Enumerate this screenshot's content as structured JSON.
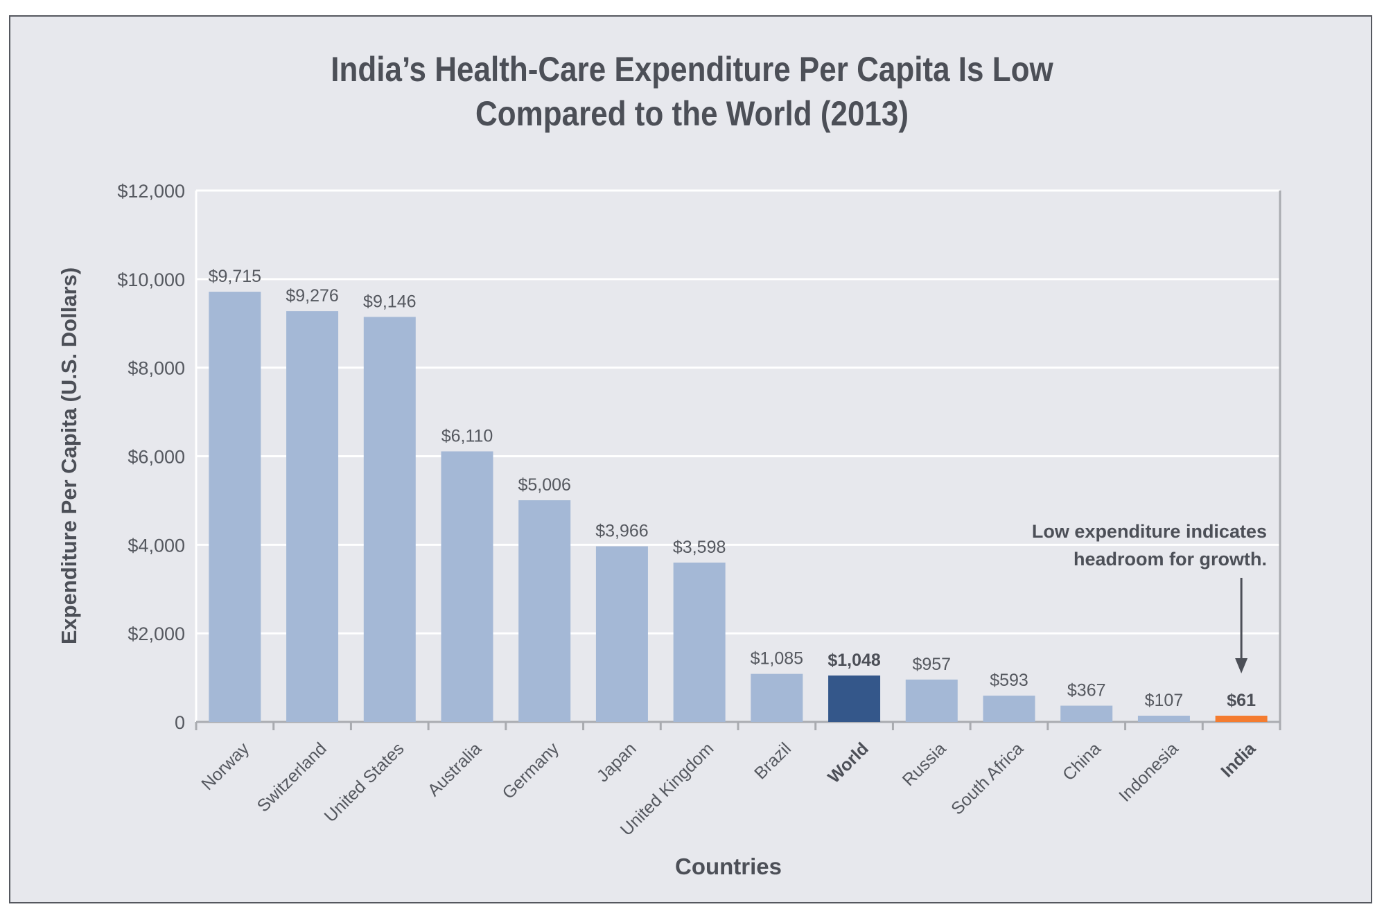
{
  "chart_data": {
    "type": "bar",
    "title_lines": [
      "India’s Health-Care Expenditure Per Capita Is Low",
      "Compared to the World (2013)"
    ],
    "xlabel": "Countries",
    "ylabel": "Expenditure Per Capita (U.S. Dollars)",
    "ylim": [
      0,
      12000
    ],
    "yticks": [
      0,
      2000,
      4000,
      6000,
      8000,
      10000,
      12000
    ],
    "ytick_labels": [
      "0",
      "$2,000",
      "$4,000",
      "$6,000",
      "$8,000",
      "$10,000",
      "$12,000"
    ],
    "grid": true,
    "categories": [
      "Norway",
      "Switzerland",
      "United States",
      "Australia",
      "Germany",
      "Japan",
      "United Kingdom",
      "Brazil",
      "World",
      "Russia",
      "South Africa",
      "China",
      "Indonesia",
      "India"
    ],
    "values": [
      9715,
      9276,
      9146,
      6110,
      5006,
      3966,
      3598,
      1085,
      1048,
      957,
      593,
      367,
      107,
      61
    ],
    "data_labels": [
      "$9,715",
      "$9,276",
      "$9,146",
      "$6,110",
      "$5,006",
      "$3,966",
      "$3,598",
      "$1,085",
      "$1,048",
      "$957",
      "$593",
      "$367",
      "$107",
      "$61"
    ],
    "highlighted": {
      "World": "#34578a",
      "India": "#f47c30"
    },
    "bar_color": "#a4b8d6",
    "annotation": {
      "lines": [
        "Low expenditure indicates",
        "headroom for growth."
      ],
      "target": "India"
    }
  }
}
